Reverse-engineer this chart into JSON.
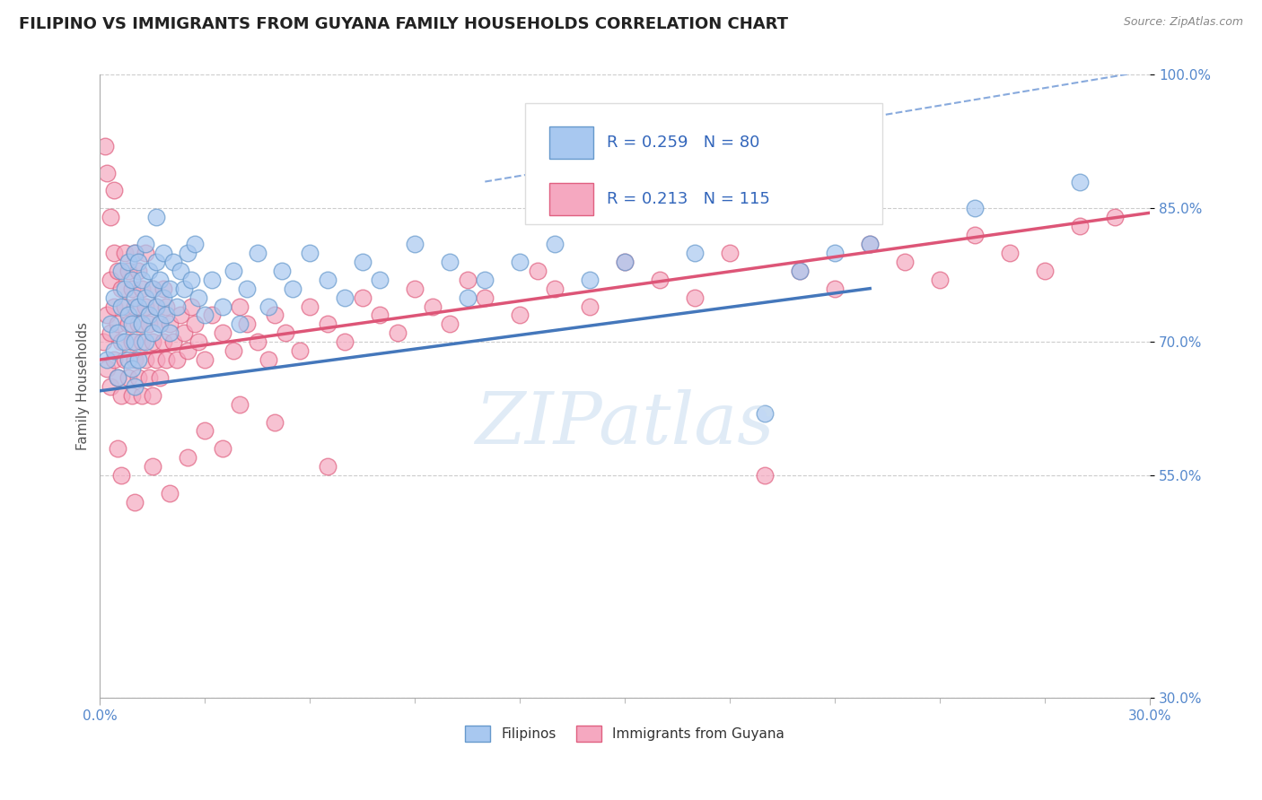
{
  "title": "FILIPINO VS IMMIGRANTS FROM GUYANA FAMILY HOUSEHOLDS CORRELATION CHART",
  "source": "Source: ZipAtlas.com",
  "ylabel": "Family Households",
  "xlim": [
    0.0,
    30.0
  ],
  "ylim": [
    30.0,
    100.0
  ],
  "xticks_major": [
    0.0,
    30.0
  ],
  "xticks_minor": [
    3.0,
    6.0,
    9.0,
    12.0,
    15.0,
    18.0,
    21.0,
    24.0,
    27.0
  ],
  "xticklabels": [
    "0.0%",
    "30.0%"
  ],
  "yticks": [
    100.0,
    85.0,
    70.0,
    55.0,
    30.0
  ],
  "yticklabels": [
    "100.0%",
    "85.0%",
    "70.0%",
    "55.0%",
    "30.0%"
  ],
  "blue_R": 0.259,
  "blue_N": 80,
  "pink_R": 0.213,
  "pink_N": 115,
  "blue_color": "#A8C8F0",
  "pink_color": "#F5A8C0",
  "blue_edge_color": "#6699CC",
  "pink_edge_color": "#E06080",
  "blue_line_color": "#4477BB",
  "pink_line_color": "#DD5577",
  "dashed_line_color": "#88AADD",
  "legend_label_blue": "Filipinos",
  "legend_label_pink": "Immigrants from Guyana",
  "watermark": "ZIPatlas",
  "title_fontsize": 13,
  "axis_label_fontsize": 11,
  "tick_fontsize": 11,
  "background_color": "#ffffff",
  "grid_color": "#cccccc",
  "blue_line_x": [
    0.0,
    22.0
  ],
  "blue_line_y": [
    64.5,
    76.0
  ],
  "pink_line_x": [
    0.0,
    30.0
  ],
  "pink_line_y": [
    68.0,
    84.5
  ],
  "dash_line_x": [
    11.0,
    30.0
  ],
  "dash_line_y": [
    88.0,
    100.5
  ],
  "blue_scatter": [
    [
      0.2,
      68.0
    ],
    [
      0.3,
      72.0
    ],
    [
      0.4,
      75.0
    ],
    [
      0.4,
      69.0
    ],
    [
      0.5,
      66.0
    ],
    [
      0.5,
      71.0
    ],
    [
      0.6,
      74.0
    ],
    [
      0.6,
      78.0
    ],
    [
      0.7,
      70.0
    ],
    [
      0.7,
      76.0
    ],
    [
      0.8,
      68.0
    ],
    [
      0.8,
      73.0
    ],
    [
      0.8,
      79.0
    ],
    [
      0.9,
      67.0
    ],
    [
      0.9,
      72.0
    ],
    [
      0.9,
      77.0
    ],
    [
      1.0,
      65.0
    ],
    [
      1.0,
      70.0
    ],
    [
      1.0,
      75.0
    ],
    [
      1.0,
      80.0
    ],
    [
      1.1,
      68.0
    ],
    [
      1.1,
      74.0
    ],
    [
      1.1,
      79.0
    ],
    [
      1.2,
      72.0
    ],
    [
      1.2,
      77.0
    ],
    [
      1.3,
      70.0
    ],
    [
      1.3,
      75.0
    ],
    [
      1.3,
      81.0
    ],
    [
      1.4,
      73.0
    ],
    [
      1.4,
      78.0
    ],
    [
      1.5,
      71.0
    ],
    [
      1.5,
      76.0
    ],
    [
      1.6,
      74.0
    ],
    [
      1.6,
      79.0
    ],
    [
      1.6,
      84.0
    ],
    [
      1.7,
      72.0
    ],
    [
      1.7,
      77.0
    ],
    [
      1.8,
      75.0
    ],
    [
      1.8,
      80.0
    ],
    [
      1.9,
      73.0
    ],
    [
      2.0,
      71.0
    ],
    [
      2.0,
      76.0
    ],
    [
      2.1,
      79.0
    ],
    [
      2.2,
      74.0
    ],
    [
      2.3,
      78.0
    ],
    [
      2.4,
      76.0
    ],
    [
      2.5,
      80.0
    ],
    [
      2.6,
      77.0
    ],
    [
      2.7,
      81.0
    ],
    [
      2.8,
      75.0
    ],
    [
      3.0,
      73.0
    ],
    [
      3.2,
      77.0
    ],
    [
      3.5,
      74.0
    ],
    [
      3.8,
      78.0
    ],
    [
      4.0,
      72.0
    ],
    [
      4.2,
      76.0
    ],
    [
      4.5,
      80.0
    ],
    [
      4.8,
      74.0
    ],
    [
      5.2,
      78.0
    ],
    [
      5.5,
      76.0
    ],
    [
      6.0,
      80.0
    ],
    [
      6.5,
      77.0
    ],
    [
      7.0,
      75.0
    ],
    [
      7.5,
      79.0
    ],
    [
      8.0,
      77.0
    ],
    [
      9.0,
      81.0
    ],
    [
      10.0,
      79.0
    ],
    [
      10.5,
      75.0
    ],
    [
      11.0,
      77.0
    ],
    [
      12.0,
      79.0
    ],
    [
      13.0,
      81.0
    ],
    [
      14.0,
      77.0
    ],
    [
      15.0,
      79.0
    ],
    [
      17.0,
      80.0
    ],
    [
      19.0,
      62.0
    ],
    [
      20.0,
      78.0
    ],
    [
      21.0,
      80.0
    ],
    [
      22.0,
      81.0
    ],
    [
      25.0,
      85.0
    ],
    [
      28.0,
      88.0
    ]
  ],
  "pink_scatter": [
    [
      0.1,
      70.0
    ],
    [
      0.2,
      67.0
    ],
    [
      0.2,
      73.0
    ],
    [
      0.3,
      65.0
    ],
    [
      0.3,
      71.0
    ],
    [
      0.3,
      77.0
    ],
    [
      0.4,
      68.0
    ],
    [
      0.4,
      74.0
    ],
    [
      0.4,
      80.0
    ],
    [
      0.5,
      66.0
    ],
    [
      0.5,
      72.0
    ],
    [
      0.5,
      78.0
    ],
    [
      0.6,
      64.0
    ],
    [
      0.6,
      70.0
    ],
    [
      0.6,
      76.0
    ],
    [
      0.7,
      68.0
    ],
    [
      0.7,
      74.0
    ],
    [
      0.7,
      80.0
    ],
    [
      0.8,
      66.0
    ],
    [
      0.8,
      72.0
    ],
    [
      0.8,
      78.0
    ],
    [
      0.9,
      64.0
    ],
    [
      0.9,
      70.0
    ],
    [
      0.9,
      76.0
    ],
    [
      1.0,
      68.0
    ],
    [
      1.0,
      74.0
    ],
    [
      1.0,
      80.0
    ],
    [
      1.1,
      66.0
    ],
    [
      1.1,
      72.0
    ],
    [
      1.1,
      78.0
    ],
    [
      1.2,
      64.0
    ],
    [
      1.2,
      70.0
    ],
    [
      1.2,
      76.0
    ],
    [
      1.3,
      68.0
    ],
    [
      1.3,
      74.0
    ],
    [
      1.3,
      80.0
    ],
    [
      1.4,
      66.0
    ],
    [
      1.4,
      72.0
    ],
    [
      1.5,
      64.0
    ],
    [
      1.5,
      70.0
    ],
    [
      1.5,
      76.0
    ],
    [
      1.6,
      68.0
    ],
    [
      1.6,
      74.0
    ],
    [
      1.7,
      66.0
    ],
    [
      1.7,
      72.0
    ],
    [
      1.8,
      70.0
    ],
    [
      1.8,
      76.0
    ],
    [
      1.9,
      68.0
    ],
    [
      1.9,
      74.0
    ],
    [
      2.0,
      72.0
    ],
    [
      2.1,
      70.0
    ],
    [
      2.2,
      68.0
    ],
    [
      2.3,
      73.0
    ],
    [
      2.4,
      71.0
    ],
    [
      2.5,
      69.0
    ],
    [
      2.6,
      74.0
    ],
    [
      2.7,
      72.0
    ],
    [
      2.8,
      70.0
    ],
    [
      3.0,
      68.0
    ],
    [
      3.2,
      73.0
    ],
    [
      3.5,
      71.0
    ],
    [
      3.8,
      69.0
    ],
    [
      4.0,
      74.0
    ],
    [
      4.2,
      72.0
    ],
    [
      4.5,
      70.0
    ],
    [
      4.8,
      68.0
    ],
    [
      5.0,
      73.0
    ],
    [
      5.3,
      71.0
    ],
    [
      5.7,
      69.0
    ],
    [
      6.0,
      74.0
    ],
    [
      6.5,
      72.0
    ],
    [
      7.0,
      70.0
    ],
    [
      7.5,
      75.0
    ],
    [
      8.0,
      73.0
    ],
    [
      8.5,
      71.0
    ],
    [
      9.0,
      76.0
    ],
    [
      9.5,
      74.0
    ],
    [
      10.0,
      72.0
    ],
    [
      10.5,
      77.0
    ],
    [
      11.0,
      75.0
    ],
    [
      12.0,
      73.0
    ],
    [
      12.5,
      78.0
    ],
    [
      13.0,
      76.0
    ],
    [
      14.0,
      74.0
    ],
    [
      15.0,
      79.0
    ],
    [
      16.0,
      77.0
    ],
    [
      17.0,
      75.0
    ],
    [
      18.0,
      80.0
    ],
    [
      19.0,
      55.0
    ],
    [
      20.0,
      78.0
    ],
    [
      21.0,
      76.0
    ],
    [
      22.0,
      81.0
    ],
    [
      23.0,
      79.0
    ],
    [
      24.0,
      77.0
    ],
    [
      25.0,
      82.0
    ],
    [
      26.0,
      80.0
    ],
    [
      27.0,
      78.0
    ],
    [
      28.0,
      83.0
    ],
    [
      29.0,
      84.0
    ],
    [
      0.2,
      89.0
    ],
    [
      0.3,
      84.0
    ],
    [
      0.4,
      87.0
    ],
    [
      0.5,
      58.0
    ],
    [
      0.6,
      55.0
    ],
    [
      1.0,
      52.0
    ],
    [
      1.5,
      56.0
    ],
    [
      2.0,
      53.0
    ],
    [
      2.5,
      57.0
    ],
    [
      3.0,
      60.0
    ],
    [
      3.5,
      58.0
    ],
    [
      4.0,
      63.0
    ],
    [
      5.0,
      61.0
    ],
    [
      6.5,
      56.0
    ],
    [
      0.15,
      92.0
    ]
  ]
}
